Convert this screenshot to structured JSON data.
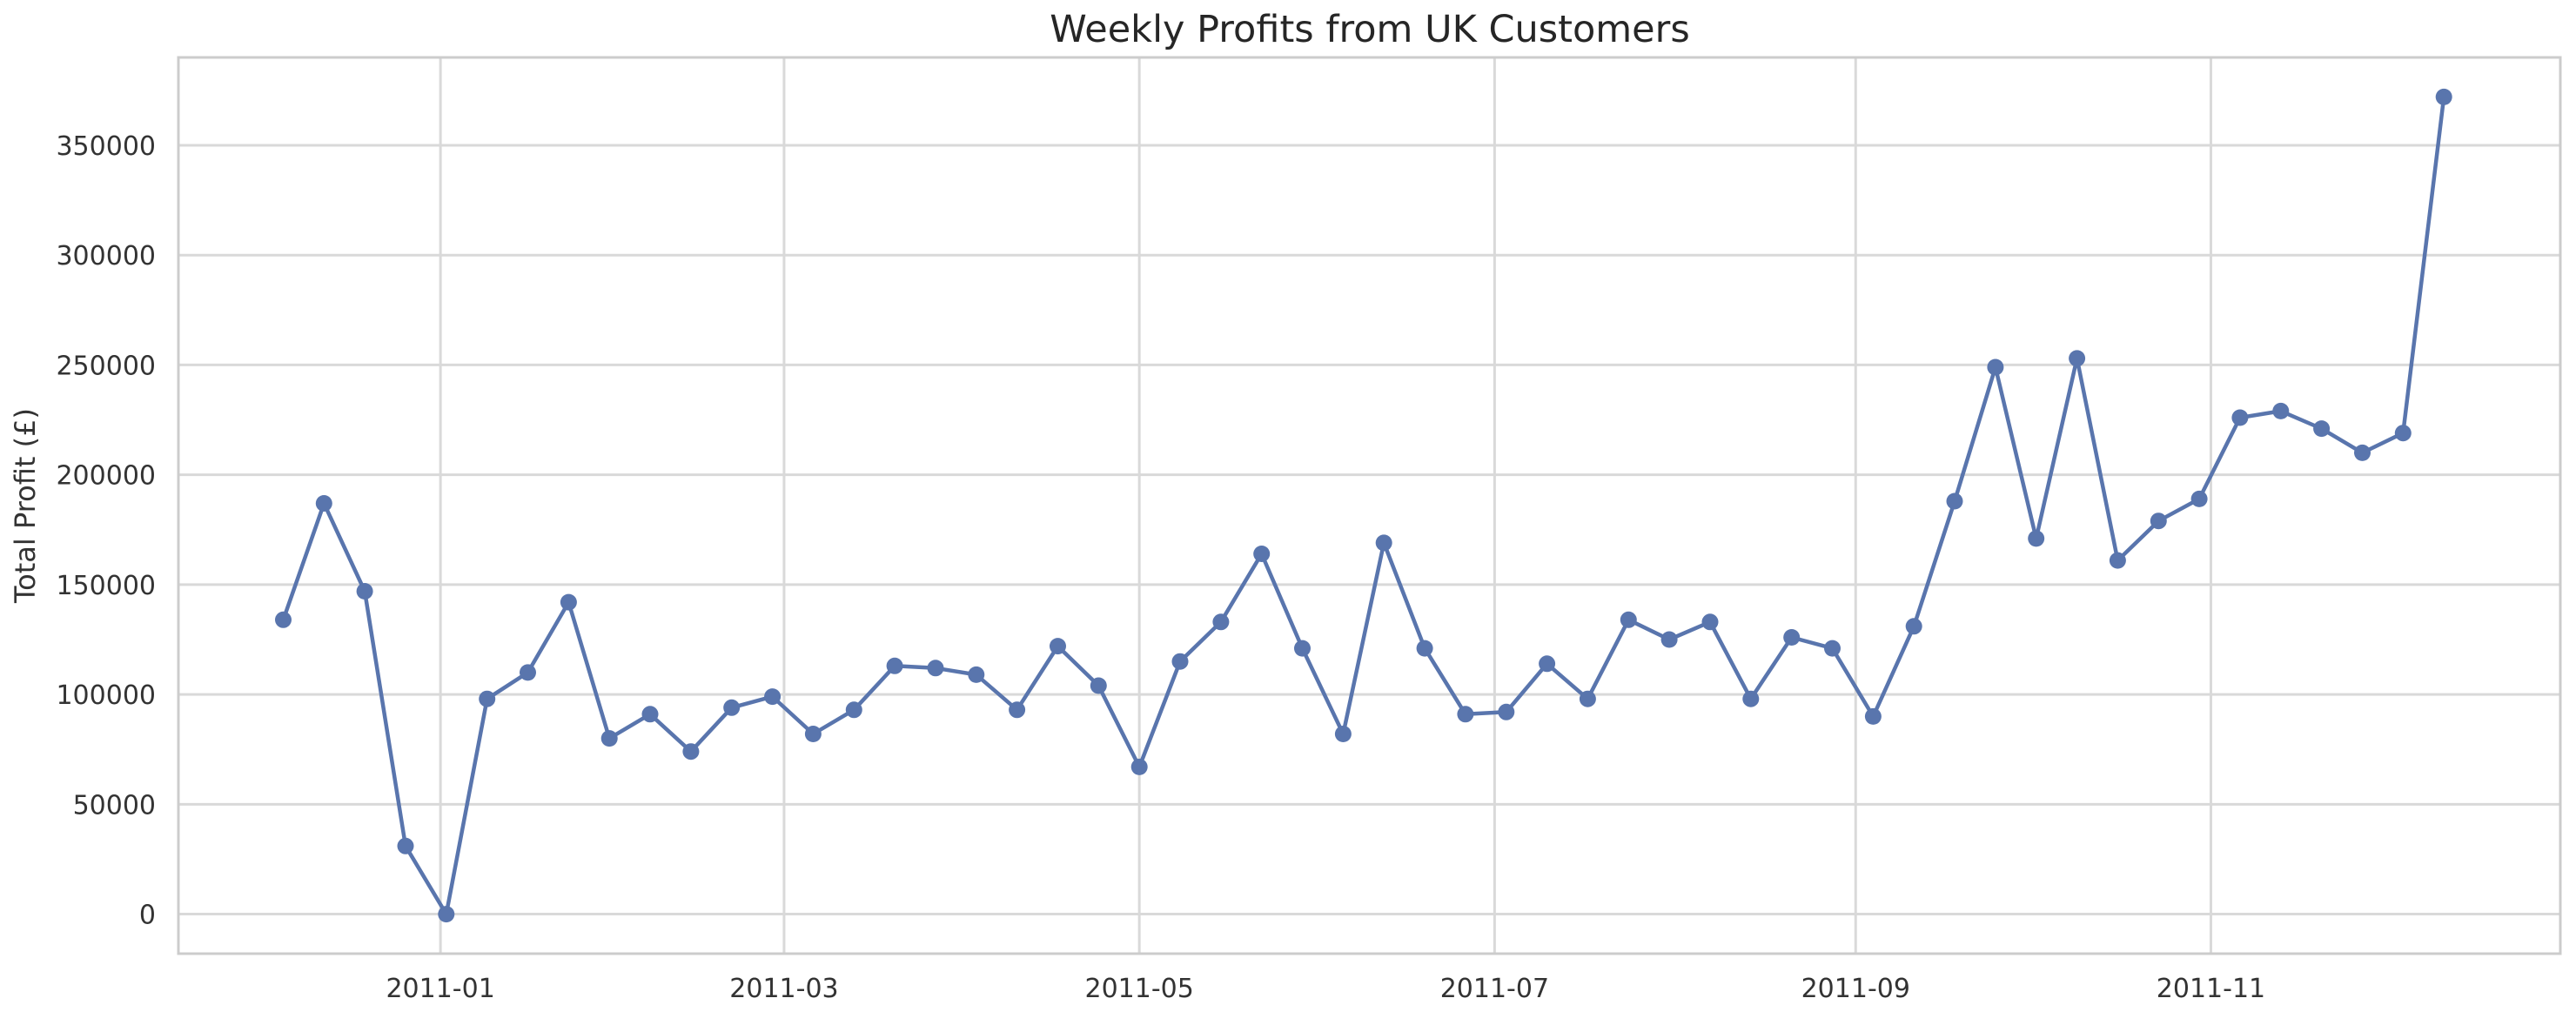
{
  "chart_data": {
    "type": "line",
    "title": "Weekly Profits from UK Customers",
    "xlabel": "",
    "ylabel": "Total Profit (£)",
    "x_axis_type": "date",
    "xlim": [
      "2010-11-17",
      "2011-12-31"
    ],
    "ylim": [
      -18000,
      390000
    ],
    "grid": true,
    "legend": "none",
    "line_color": "#5975ad",
    "marker": "circle",
    "x_ticks": [
      {
        "date": "2011-01-01",
        "label": "2011-01"
      },
      {
        "date": "2011-03-01",
        "label": "2011-03"
      },
      {
        "date": "2011-05-01",
        "label": "2011-05"
      },
      {
        "date": "2011-07-01",
        "label": "2011-07"
      },
      {
        "date": "2011-09-01",
        "label": "2011-09"
      },
      {
        "date": "2011-11-01",
        "label": "2011-11"
      }
    ],
    "y_ticks": [
      {
        "value": 0,
        "label": "0"
      },
      {
        "value": 50000,
        "label": "50000"
      },
      {
        "value": 100000,
        "label": "100000"
      },
      {
        "value": 150000,
        "label": "150000"
      },
      {
        "value": 200000,
        "label": "200000"
      },
      {
        "value": 250000,
        "label": "250000"
      },
      {
        "value": 300000,
        "label": "300000"
      },
      {
        "value": 350000,
        "label": "350000"
      }
    ],
    "x": [
      "2010-12-05",
      "2010-12-12",
      "2010-12-19",
      "2010-12-26",
      "2011-01-02",
      "2011-01-09",
      "2011-01-16",
      "2011-01-23",
      "2011-01-30",
      "2011-02-06",
      "2011-02-13",
      "2011-02-20",
      "2011-02-27",
      "2011-03-06",
      "2011-03-13",
      "2011-03-20",
      "2011-03-27",
      "2011-04-03",
      "2011-04-10",
      "2011-04-17",
      "2011-04-24",
      "2011-05-01",
      "2011-05-08",
      "2011-05-15",
      "2011-05-22",
      "2011-05-29",
      "2011-06-05",
      "2011-06-12",
      "2011-06-19",
      "2011-06-26",
      "2011-07-03",
      "2011-07-10",
      "2011-07-17",
      "2011-07-24",
      "2011-07-31",
      "2011-08-07",
      "2011-08-14",
      "2011-08-21",
      "2011-08-28",
      "2011-09-04",
      "2011-09-11",
      "2011-09-18",
      "2011-09-25",
      "2011-10-02",
      "2011-10-09",
      "2011-10-16",
      "2011-10-23",
      "2011-10-30",
      "2011-11-06",
      "2011-11-13",
      "2011-11-20",
      "2011-11-27",
      "2011-12-04",
      "2011-12-11"
    ],
    "series": [
      {
        "values": [
          134000,
          187000,
          147000,
          31000,
          0,
          98000,
          110000,
          142000,
          80000,
          91000,
          74000,
          94000,
          99000,
          82000,
          93000,
          113000,
          112000,
          109000,
          93000,
          122000,
          104000,
          67000,
          115000,
          133000,
          164000,
          121000,
          82000,
          169000,
          121000,
          91000,
          92000,
          114000,
          98000,
          134000,
          125000,
          133000,
          98000,
          126000,
          121000,
          90000,
          131000,
          188000,
          249000,
          171000,
          253000,
          161000,
          179000,
          189000,
          226000,
          229000,
          221000,
          210000,
          219000,
          372000
        ]
      }
    ]
  }
}
